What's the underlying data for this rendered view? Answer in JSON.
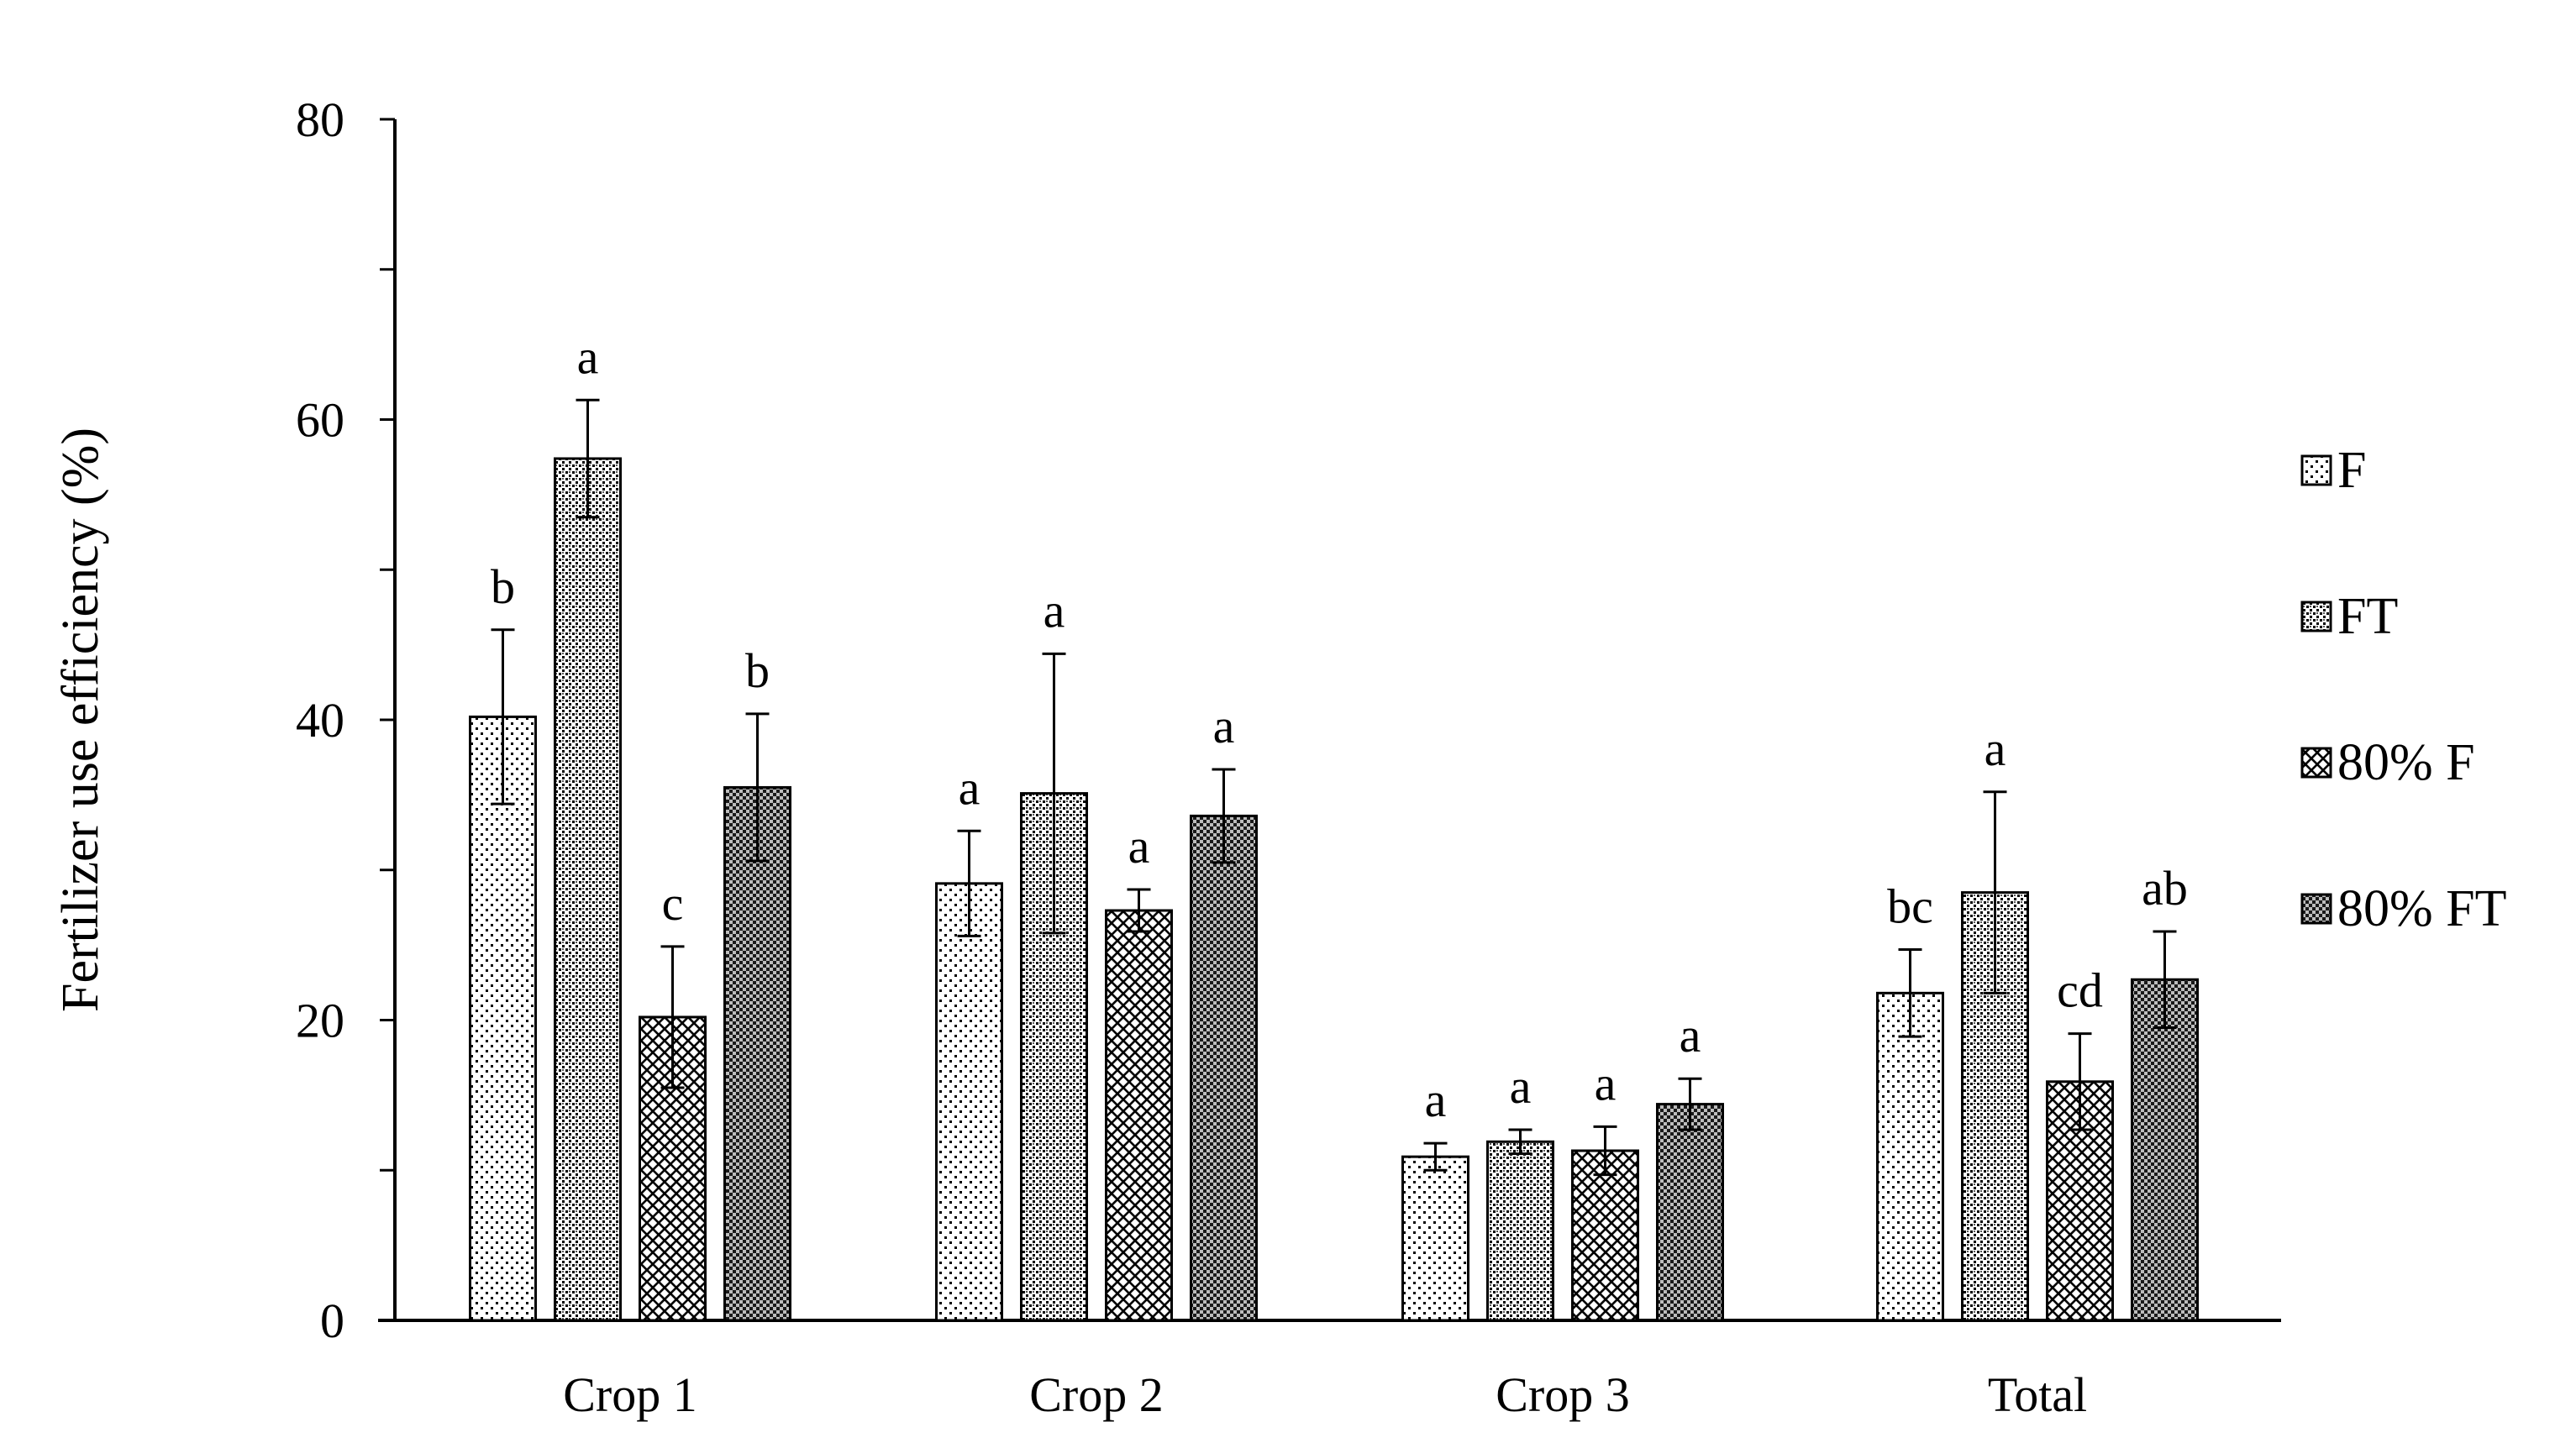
{
  "chart_data": {
    "type": "bar",
    "title": "",
    "xlabel": "",
    "ylabel": "Fertilizer use efficiency (%)",
    "ylim": [
      0,
      80
    ],
    "yticks": [
      0,
      20,
      40,
      60,
      80
    ],
    "categories": [
      "Crop 1",
      "Crop 2",
      "Crop 3",
      "Total"
    ],
    "series": [
      {
        "name": "F",
        "pattern": "sparse-dots",
        "values": [
          40.2,
          29.1,
          10.9,
          21.8
        ],
        "errors": [
          5.8,
          3.5,
          0.9,
          2.9
        ],
        "letters": [
          "b",
          "a",
          "a",
          "bc"
        ]
      },
      {
        "name": "FT",
        "pattern": "dense-dots",
        "values": [
          57.4,
          35.1,
          11.9,
          28.5
        ],
        "errors": [
          3.9,
          9.3,
          0.8,
          6.7
        ],
        "letters": [
          "a",
          "a",
          "a",
          "a"
        ]
      },
      {
        "name": "80% F",
        "pattern": "crosshatch",
        "values": [
          20.2,
          27.3,
          11.3,
          15.9
        ],
        "errors": [
          4.7,
          1.4,
          1.6,
          3.2
        ],
        "letters": [
          "c",
          "a",
          "a",
          "cd"
        ]
      },
      {
        "name": "80% FT",
        "pattern": "checker",
        "values": [
          35.5,
          33.6,
          14.4,
          22.7
        ],
        "errors": [
          4.9,
          3.1,
          1.7,
          3.2
        ],
        "letters": [
          "b",
          "a",
          "a",
          "ab"
        ]
      }
    ],
    "legend_position": "right",
    "grid": false
  }
}
